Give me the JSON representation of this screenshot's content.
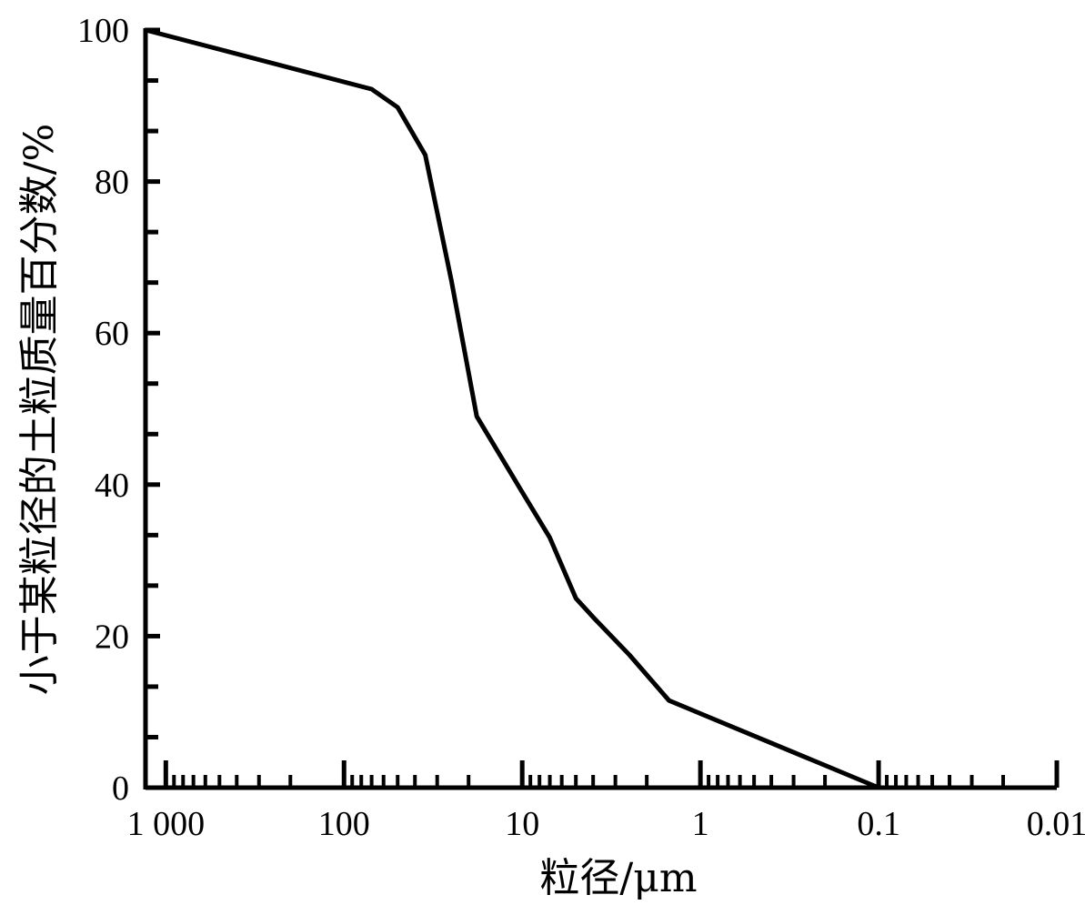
{
  "chart_data": {
    "type": "line",
    "xlabel": "粒径/μm",
    "ylabel": "小于某粒径的土粒质量百分数/%",
    "x_scale": "log",
    "x_reversed": true,
    "xlim": [
      1300,
      0.01
    ],
    "ylim": [
      0,
      100
    ],
    "x_ticks": [
      {
        "value": 1000,
        "label": "1 000"
      },
      {
        "value": 100,
        "label": "100"
      },
      {
        "value": 10,
        "label": "10"
      },
      {
        "value": 1,
        "label": "1"
      },
      {
        "value": 0.1,
        "label": "0.1"
      },
      {
        "value": 0.01,
        "label": "0.01"
      }
    ],
    "y_ticks": [
      {
        "value": 0,
        "label": "0"
      },
      {
        "value": 20,
        "label": "20"
      },
      {
        "value": 40,
        "label": "40"
      },
      {
        "value": 60,
        "label": "60"
      },
      {
        "value": 80,
        "label": "80"
      },
      {
        "value": 100,
        "label": "100"
      }
    ],
    "series": [
      {
        "color": "#000000",
        "x": [
          1300,
          70,
          50,
          35,
          25,
          18,
          10,
          7,
          5,
          4,
          2.5,
          1.5,
          0.1
        ],
        "y": [
          100,
          92.2,
          89.8,
          83.5,
          67,
          49,
          39,
          33,
          25,
          22.5,
          17.5,
          11.5,
          0
        ]
      }
    ],
    "grid": false,
    "legend": "none"
  }
}
